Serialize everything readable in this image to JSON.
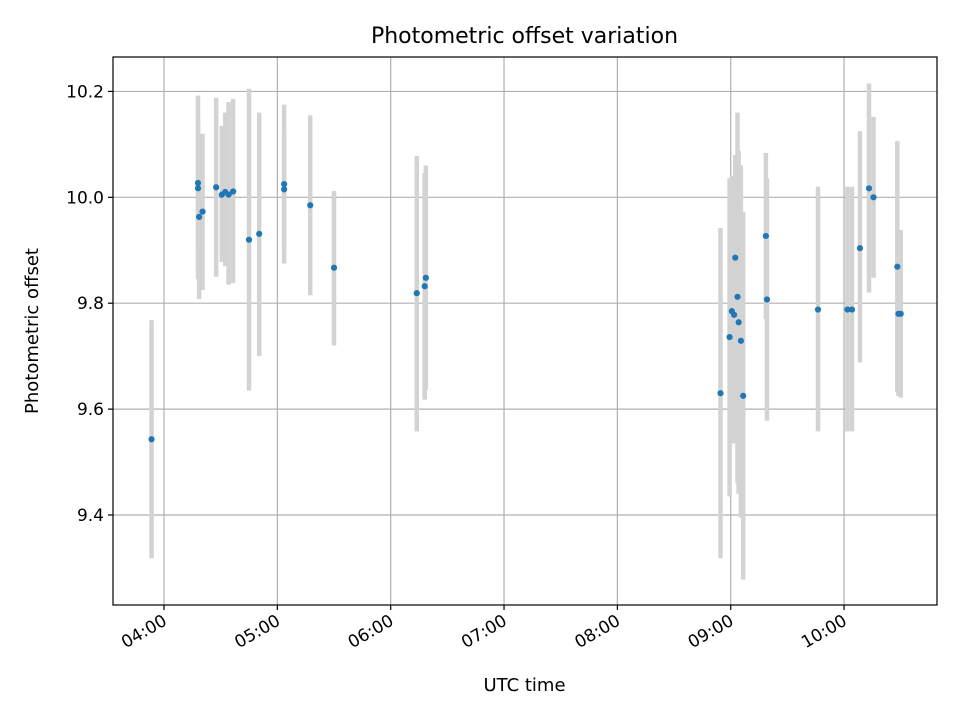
{
  "chart_data": {
    "type": "scatter",
    "title": "Photometric offset variation",
    "xlabel": "UTC time",
    "ylabel": "Photometric offset",
    "x_unit": "UTC hours",
    "xlim": [
      3.55,
      10.82
    ],
    "ylim": [
      9.23,
      10.265
    ],
    "x_ticks": [
      {
        "value": 4,
        "label": "04:00"
      },
      {
        "value": 5,
        "label": "05:00"
      },
      {
        "value": 6,
        "label": "06:00"
      },
      {
        "value": 7,
        "label": "07:00"
      },
      {
        "value": 8,
        "label": "08:00"
      },
      {
        "value": 9,
        "label": "09:00"
      },
      {
        "value": 10,
        "label": "10:00"
      }
    ],
    "y_ticks": [
      {
        "value": 9.4,
        "label": "9.4"
      },
      {
        "value": 9.6,
        "label": "9.6"
      },
      {
        "value": 9.8,
        "label": "9.8"
      },
      {
        "value": 10.0,
        "label": "10.0"
      },
      {
        "value": 10.2,
        "label": "10.2"
      }
    ],
    "grid": true,
    "point_color": "#1f77b4",
    "errorbar_color": "#d3d3d3",
    "points": [
      {
        "x": 3.89,
        "y": 9.543,
        "ylo": 9.318,
        "yhi": 9.768
      },
      {
        "x": 4.3,
        "y": 10.027,
        "ylo": 9.845,
        "yhi": 10.192
      },
      {
        "x": 4.3,
        "y": 10.017,
        "ylo": 9.9,
        "yhi": 10.15
      },
      {
        "x": 4.31,
        "y": 9.963,
        "ylo": 9.808,
        "yhi": 10.12
      },
      {
        "x": 4.34,
        "y": 9.973,
        "ylo": 9.825,
        "yhi": 10.12
      },
      {
        "x": 4.46,
        "y": 10.019,
        "ylo": 9.85,
        "yhi": 10.188
      },
      {
        "x": 4.51,
        "y": 10.005,
        "ylo": 9.878,
        "yhi": 10.135
      },
      {
        "x": 4.54,
        "y": 10.01,
        "ylo": 9.87,
        "yhi": 10.16
      },
      {
        "x": 4.57,
        "y": 10.005,
        "ylo": 9.835,
        "yhi": 10.18
      },
      {
        "x": 4.61,
        "y": 10.011,
        "ylo": 9.838,
        "yhi": 10.186
      },
      {
        "x": 4.75,
        "y": 9.92,
        "ylo": 9.635,
        "yhi": 10.205
      },
      {
        "x": 4.84,
        "y": 9.931,
        "ylo": 9.7,
        "yhi": 10.16
      },
      {
        "x": 5.06,
        "y": 10.025,
        "ylo": 9.875,
        "yhi": 10.175
      },
      {
        "x": 5.06,
        "y": 10.015,
        "ylo": 9.9,
        "yhi": 10.12
      },
      {
        "x": 5.29,
        "y": 9.985,
        "ylo": 9.815,
        "yhi": 10.155
      },
      {
        "x": 5.5,
        "y": 9.867,
        "ylo": 9.72,
        "yhi": 10.012
      },
      {
        "x": 6.23,
        "y": 9.819,
        "ylo": 9.558,
        "yhi": 10.078
      },
      {
        "x": 6.3,
        "y": 9.832,
        "ylo": 9.618,
        "yhi": 10.046
      },
      {
        "x": 6.31,
        "y": 9.848,
        "ylo": 9.636,
        "yhi": 10.06
      },
      {
        "x": 8.91,
        "y": 9.63,
        "ylo": 9.318,
        "yhi": 9.942
      },
      {
        "x": 8.99,
        "y": 9.736,
        "ylo": 9.435,
        "yhi": 10.036
      },
      {
        "x": 9.01,
        "y": 9.785,
        "ylo": 9.535,
        "yhi": 10.04
      },
      {
        "x": 9.03,
        "y": 9.778,
        "ylo": 9.535,
        "yhi": 10.02
      },
      {
        "x": 9.04,
        "y": 9.886,
        "ylo": 9.69,
        "yhi": 10.08
      },
      {
        "x": 9.06,
        "y": 9.812,
        "ylo": 9.46,
        "yhi": 10.16
      },
      {
        "x": 9.07,
        "y": 9.764,
        "ylo": 9.44,
        "yhi": 10.088
      },
      {
        "x": 9.09,
        "y": 9.729,
        "ylo": 9.395,
        "yhi": 10.06
      },
      {
        "x": 9.11,
        "y": 9.625,
        "ylo": 9.278,
        "yhi": 9.972
      },
      {
        "x": 9.31,
        "y": 9.927,
        "ylo": 9.77,
        "yhi": 10.084
      },
      {
        "x": 9.32,
        "y": 9.807,
        "ylo": 9.578,
        "yhi": 10.036
      },
      {
        "x": 9.77,
        "y": 9.788,
        "ylo": 9.558,
        "yhi": 10.02
      },
      {
        "x": 10.03,
        "y": 9.788,
        "ylo": 9.558,
        "yhi": 10.02
      },
      {
        "x": 10.07,
        "y": 9.788,
        "ylo": 9.558,
        "yhi": 10.02
      },
      {
        "x": 10.14,
        "y": 9.904,
        "ylo": 9.688,
        "yhi": 10.125
      },
      {
        "x": 10.22,
        "y": 10.017,
        "ylo": 9.82,
        "yhi": 10.215
      },
      {
        "x": 10.26,
        "y": 10.0,
        "ylo": 9.848,
        "yhi": 10.152
      },
      {
        "x": 10.47,
        "y": 9.869,
        "ylo": 9.632,
        "yhi": 10.106
      },
      {
        "x": 10.48,
        "y": 9.78,
        "ylo": 9.625,
        "yhi": 9.935
      },
      {
        "x": 10.5,
        "y": 9.78,
        "ylo": 9.622,
        "yhi": 9.938
      }
    ]
  }
}
